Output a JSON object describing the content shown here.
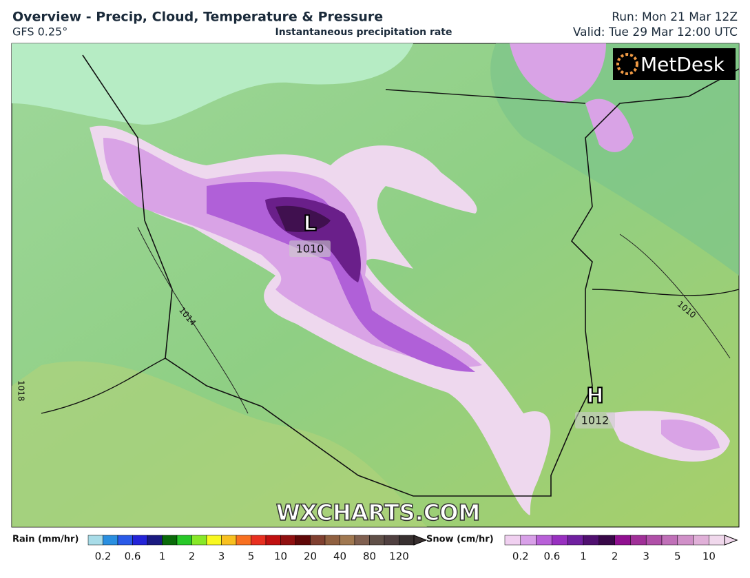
{
  "header": {
    "title": "Overview - Precip, Cloud, Temperature & Pressure",
    "model": "GFS 0.25°",
    "subtitle": "Instantaneous precipitation rate",
    "run": "Run: Mon 21 Mar 12Z",
    "valid": "Valid: Tue 29 Mar 12:00 UTC"
  },
  "map": {
    "logo": "MetDesk",
    "watermark": "WXCHARTS.COM",
    "pressure_centers": [
      {
        "symbol": "L",
        "value": "1010"
      },
      {
        "symbol": "H",
        "value": "1012"
      }
    ],
    "isobar_labels": [
      "1014",
      "1010",
      "1018"
    ]
  },
  "legend": {
    "rain": {
      "title": "Rain (mm/hr)",
      "ticks": [
        "0.2",
        "0.6",
        "1",
        "2",
        "3",
        "5",
        "10",
        "20",
        "40",
        "80",
        "120"
      ],
      "colors": [
        "#a8dce8",
        "#2a8fe0",
        "#2a5ae8",
        "#2424d8",
        "#1a1a80",
        "#0a6a0a",
        "#28c828",
        "#88e828",
        "#f8f820",
        "#f8c020",
        "#f87020",
        "#e83020",
        "#c01010",
        "#901010",
        "#600808",
        "#804030",
        "#906040",
        "#a07850",
        "#806050",
        "#605048",
        "#504040",
        "#383030"
      ]
    },
    "snow": {
      "title": "Snow (cm/hr)",
      "ticks": [
        "0.2",
        "0.6",
        "1",
        "2",
        "3",
        "5",
        "10"
      ],
      "colors": [
        "#f0d0f0",
        "#d8a0e8",
        "#b860d8",
        "#9830c0",
        "#7020a0",
        "#501070",
        "#380848",
        "#901090",
        "#a03098",
        "#b050a8",
        "#c070b8",
        "#d090c8",
        "#e0b0d8",
        "#f0d8ec"
      ]
    }
  }
}
